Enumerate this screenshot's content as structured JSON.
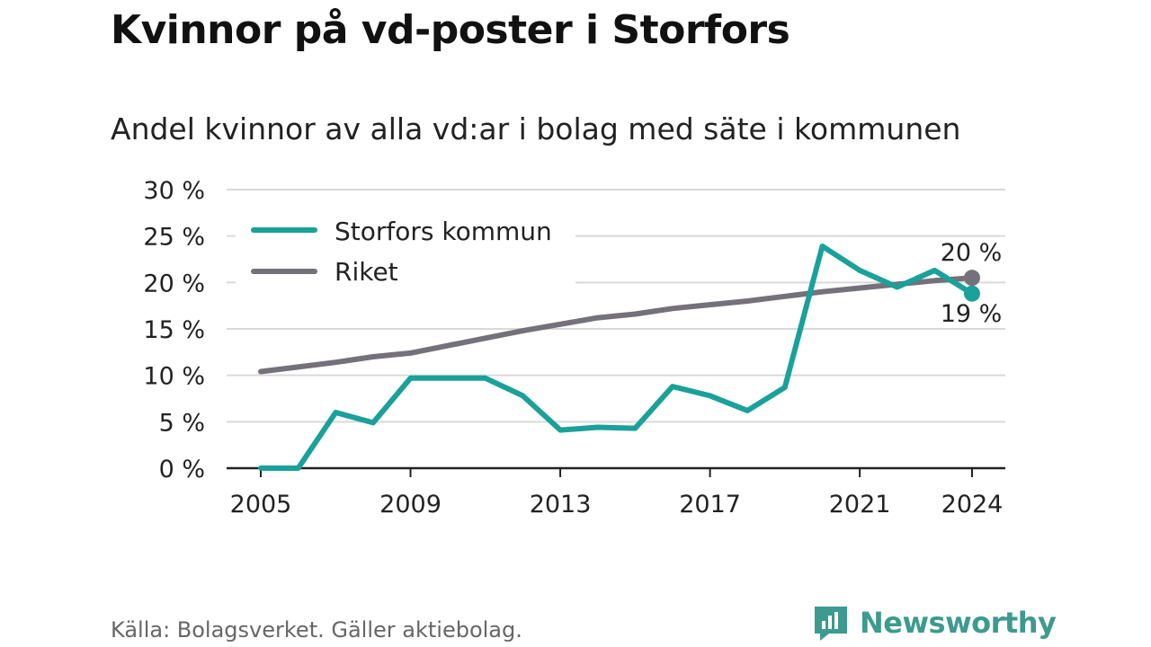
{
  "title": "Kvinnor på vd-poster i Storfors",
  "subtitle": "Andel kvinnor av alla vd:ar i bolag med säte i kommunen",
  "source": "Källa: Bolagsverket. Gäller aktiebolag.",
  "brand": {
    "name": "Newsworthy",
    "icon": "newsworthy-logo-icon"
  },
  "colors": {
    "storfors": "#1aa199",
    "riket": "#74717a",
    "grid": "#d9d9d9",
    "axis": "#222222",
    "brand": "#3d9a8e"
  },
  "chart_data": {
    "type": "line",
    "x": [
      2005,
      2006,
      2007,
      2008,
      2009,
      2010,
      2011,
      2012,
      2013,
      2014,
      2015,
      2016,
      2017,
      2018,
      2019,
      2020,
      2021,
      2022,
      2023,
      2024
    ],
    "series": [
      {
        "name": "Storfors kommun",
        "color": "#1aa199",
        "values": [
          0,
          0,
          6.0,
          4.9,
          9.7,
          9.7,
          9.7,
          7.8,
          4.1,
          4.4,
          4.3,
          8.8,
          7.8,
          6.2,
          8.7,
          23.9,
          21.3,
          19.5,
          21.3,
          18.8
        ],
        "end_label": "19 %"
      },
      {
        "name": "Riket",
        "color": "#74717a",
        "values": [
          10.4,
          10.9,
          11.4,
          12.0,
          12.4,
          13.2,
          14.0,
          14.8,
          15.5,
          16.2,
          16.6,
          17.2,
          17.6,
          18.0,
          18.5,
          19.0,
          19.4,
          19.8,
          20.2,
          20.5
        ],
        "end_label": "20 %"
      }
    ],
    "yticks": [
      "0 %",
      "5 %",
      "10 %",
      "15 %",
      "20 %",
      "25 %",
      "30 %"
    ],
    "ytick_values": [
      0,
      5,
      10,
      15,
      20,
      25,
      30
    ],
    "xticks": [
      "2005",
      "2009",
      "2013",
      "2017",
      "2021",
      "2024"
    ],
    "xtick_values": [
      2005,
      2009,
      2013,
      2017,
      2021,
      2024
    ],
    "ylim": [
      0,
      30
    ],
    "xlim": [
      2005,
      2024
    ],
    "grid": true,
    "legend": "top-left",
    "xlabel": "",
    "ylabel": ""
  }
}
